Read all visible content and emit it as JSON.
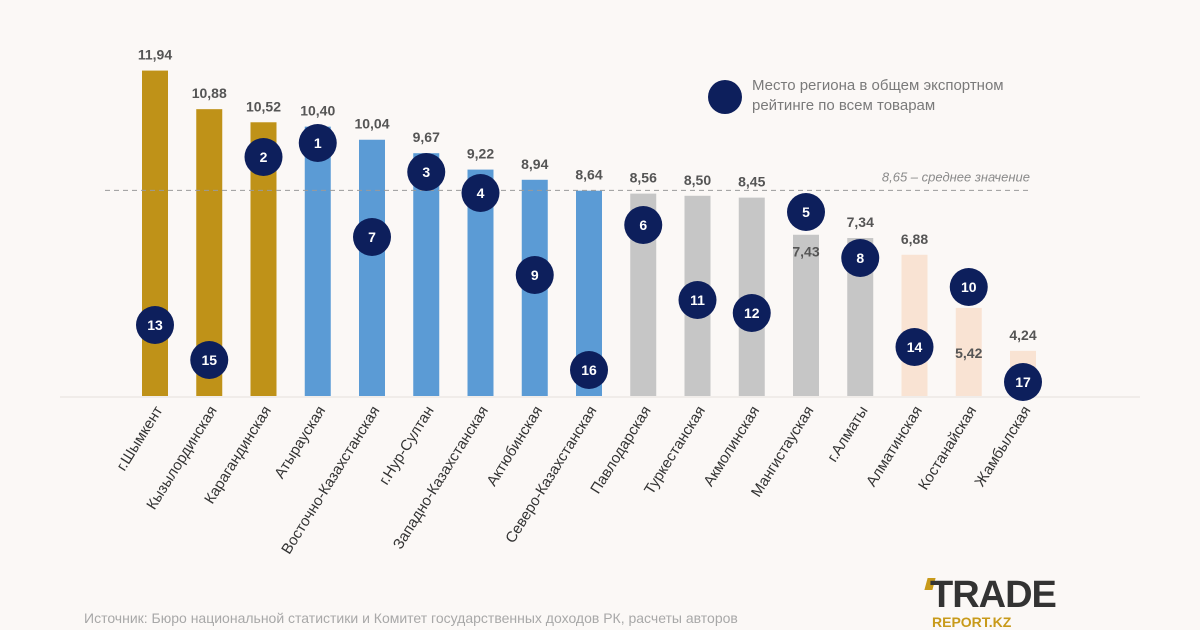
{
  "chart_data": {
    "type": "bar",
    "categories": [
      "г.Шымкент",
      "Кызылординская",
      "Карагандинская",
      "Атырауская",
      "Восточно-Казахстанская",
      "г.Нур-Султан",
      "Западно-Казахстанская",
      "Актюбинская",
      "Северо-Казахстанская",
      "Павлодарская",
      "Туркестанская",
      "Акмолинская",
      "Мангистауская",
      "г.Алматы",
      "Алматинская",
      "Костанайская",
      "Жамбылская"
    ],
    "values": [
      11.94,
      10.88,
      10.52,
      10.4,
      10.04,
      9.67,
      9.22,
      8.94,
      8.64,
      8.56,
      8.5,
      8.45,
      7.43,
      7.34,
      6.88,
      5.42,
      4.24
    ],
    "value_labels": [
      "11,94",
      "10,88",
      "10,52",
      "10,40",
      "10,04",
      "9,67",
      "9,22",
      "8,94",
      "8,64",
      "8,56",
      "8,50",
      "8,45",
      "7,43",
      "7,34",
      "6,88",
      "5,42",
      "4,24"
    ],
    "ranks": [
      13,
      15,
      2,
      1,
      7,
      3,
      4,
      9,
      16,
      6,
      11,
      12,
      5,
      8,
      14,
      10,
      17
    ],
    "bar_colors": [
      "#bf9218",
      "#bf9218",
      "#bf9218",
      "#5b9bd5",
      "#5b9bd5",
      "#5b9bd5",
      "#5b9bd5",
      "#5b9bd5",
      "#5b9bd5",
      "#c6c6c6",
      "#c6c6c6",
      "#c6c6c6",
      "#c6c6c6",
      "#c6c6c6",
      "#f9e3d3",
      "#f9e3d3",
      "#f9e3d3"
    ],
    "rank_marker_color": "#0d1f5c",
    "ylim": [
      3,
      12.5
    ],
    "grid": false,
    "mean": {
      "value": 8.65,
      "label": "8,65 – среднее значение"
    },
    "legend": {
      "label": "Место региона в общем экспортном рейтинге по всем товарам",
      "placement": "top-right"
    }
  },
  "source": "Источник: Бюро национальной статистики и Комитет государственных доходов РК, расчеты авторов",
  "logo": {
    "text": "TRADE",
    "sub": "REPORT.KZ"
  }
}
